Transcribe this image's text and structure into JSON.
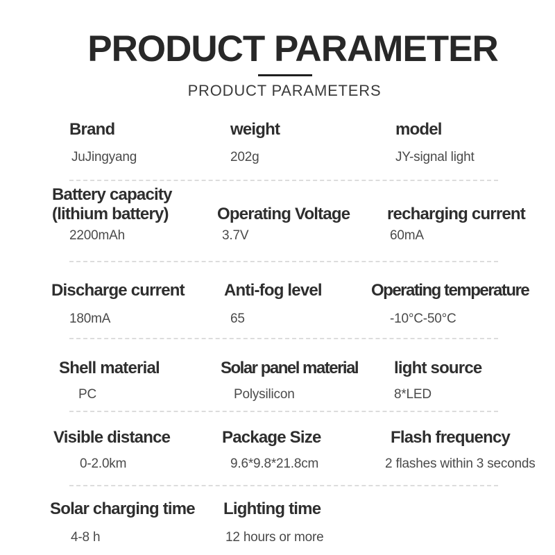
{
  "page": {
    "title": "PRODUCT PARAMETER",
    "subtitle": "PRODUCT PARAMETERS"
  },
  "colors": {
    "background": "#ffffff",
    "title_text": "#282828",
    "label_text": "#2e2e2e",
    "value_text": "#4a4a4a",
    "divider": "#dcdcdc"
  },
  "spec_table": {
    "rows": [
      {
        "cells": [
          {
            "label": "Brand",
            "value": "JuJingyang"
          },
          {
            "label": "weight",
            "value": "202g"
          },
          {
            "label": "model",
            "value": "JY-signal light"
          }
        ]
      },
      {
        "cells": [
          {
            "label": "Battery capacity\n(lithium battery)",
            "value": "2200mAh"
          },
          {
            "label": "Operating Voltage",
            "value": "3.7V"
          },
          {
            "label": "recharging current",
            "value": "60mA"
          }
        ]
      },
      {
        "cells": [
          {
            "label": "Discharge current",
            "value": "180mA"
          },
          {
            "label": "Anti-fog level",
            "value": "65"
          },
          {
            "label": "Operating temperature",
            "value": "-10°C-50°C"
          }
        ]
      },
      {
        "cells": [
          {
            "label": "Shell material",
            "value": "PC"
          },
          {
            "label": "Solar panel material",
            "value": "Polysilicon"
          },
          {
            "label": "light source",
            "value": "8*LED"
          }
        ]
      },
      {
        "cells": [
          {
            "label": "Visible distance",
            "value": "0-2.0km"
          },
          {
            "label": "Package Size",
            "value": "9.6*9.8*21.8cm"
          },
          {
            "label": "Flash frequency",
            "value": "2 flashes within 3 seconds"
          }
        ]
      },
      {
        "cells": [
          {
            "label": "Solar charging time",
            "value": "4-8 h"
          },
          {
            "label": "Lighting time",
            "value": "12 hours or more"
          }
        ]
      }
    ]
  }
}
